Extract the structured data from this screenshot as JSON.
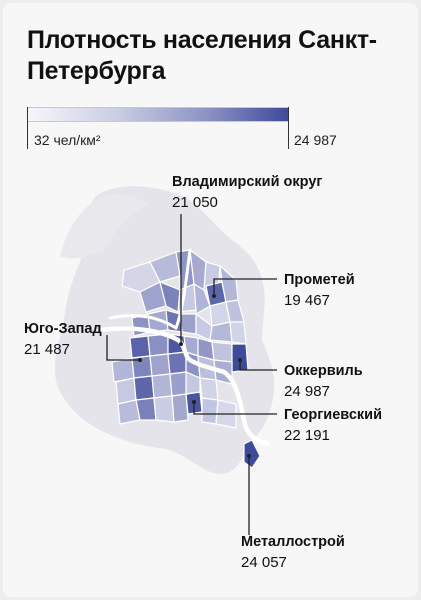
{
  "title": "Плотность населения Санкт-Петербурга",
  "legend": {
    "min_label": "32 чел/км²",
    "max_label": "24 987",
    "min_value": 32,
    "max_value": 24987,
    "colors": {
      "low": "#f7f7fb",
      "mid": "#8a90c2",
      "high": "#3f4a9a"
    }
  },
  "callouts": [
    {
      "name": "Владимирский округ",
      "value": "21 050",
      "density": 21050
    },
    {
      "name": "Прометей",
      "value": "19 467",
      "density": 19467
    },
    {
      "name": "Юго-Запад",
      "value": "21 487",
      "density": 21487
    },
    {
      "name": "Оккервиль",
      "value": "24 987",
      "density": 24987
    },
    {
      "name": "Георгиевский",
      "value": "22 191",
      "density": 22191
    },
    {
      "name": "Металлострой",
      "value": "24 057",
      "density": 24057
    }
  ],
  "colors": {
    "background": "#f7f7f7",
    "outer_land": "#e4e4ea",
    "river": "#ffffff",
    "leader": "#222222"
  }
}
